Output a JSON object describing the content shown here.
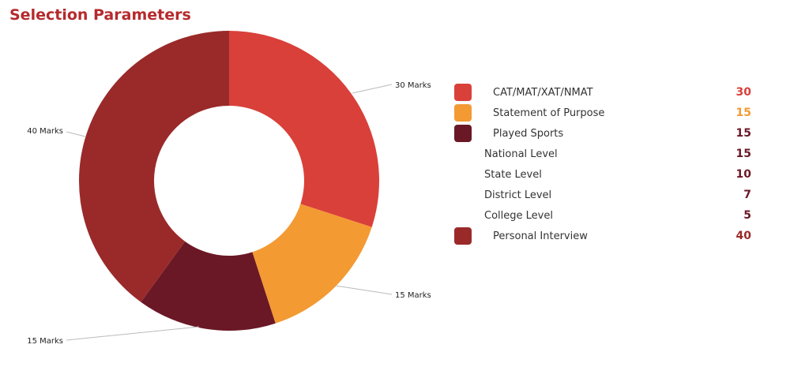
{
  "title": "Selection Parameters",
  "chart_data": {
    "type": "pie",
    "donut": true,
    "slices": [
      {
        "label": "30 Marks",
        "value": 30,
        "color": "#d9403a"
      },
      {
        "label": "15 Marks",
        "value": 15,
        "color": "#f39a33"
      },
      {
        "label": "15 Marks",
        "value": 15,
        "color": "#6b1826"
      },
      {
        "label": "40 Marks",
        "value": 40,
        "color": "#9a2a2a"
      }
    ]
  },
  "legend": [
    {
      "label": "CAT/MAT/XAT/NMAT",
      "value": "30",
      "color": "#d9403a",
      "value_color": "#d9403a"
    },
    {
      "label": "Statement of Purpose",
      "value": "15",
      "color": "#f39a33",
      "value_color": "#f39a33"
    },
    {
      "label": "Played Sports",
      "value": "15",
      "color": "#6b1826",
      "value_color": "#6b1826"
    },
    {
      "label": "National Level",
      "value": "15",
      "sub": true,
      "value_color": "#6b1826"
    },
    {
      "label": "State Level",
      "value": "10",
      "sub": true,
      "value_color": "#6b1826"
    },
    {
      "label": "District Level",
      "value": "7",
      "sub": true,
      "value_color": "#6b1826"
    },
    {
      "label": "College Level",
      "value": "5",
      "sub": true,
      "value_color": "#6b1826"
    },
    {
      "label": "Personal Interview",
      "value": "40",
      "color": "#9a2a2a",
      "value_color": "#9a2a2a"
    }
  ]
}
